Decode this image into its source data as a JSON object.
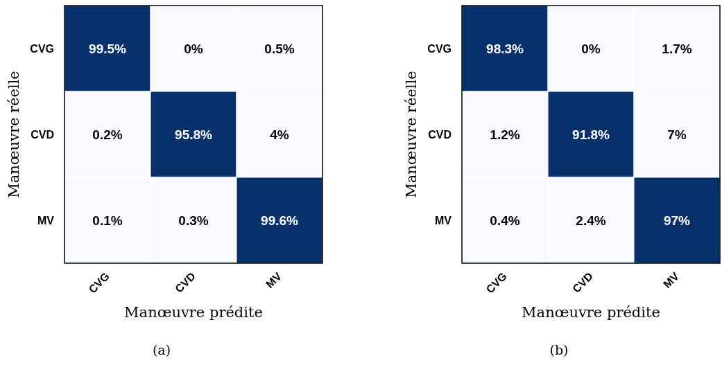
{
  "chart_data": [
    {
      "type": "heatmap",
      "xlabel": "Manœuvre prédite",
      "ylabel": "Manœuvre réelle",
      "categories": [
        "CVG",
        "CVD",
        "MV"
      ],
      "y_categories": [
        "CVG",
        "CVD",
        "MV"
      ],
      "cells": [
        [
          99.5,
          0,
          0.5
        ],
        [
          0.2,
          95.8,
          4
        ],
        [
          0.1,
          0.3,
          99.6
        ]
      ],
      "cell_labels": [
        [
          "99.5%",
          "0%",
          "0.5%"
        ],
        [
          "0.2%",
          "95.8%",
          "4%"
        ],
        [
          "0.1%",
          "0.3%",
          "99.6%"
        ]
      ],
      "annotations": [
        "(a)"
      ]
    },
    {
      "type": "heatmap",
      "xlabel": "Manœuvre prédite",
      "ylabel": "Manœuvre réelle",
      "categories": [
        "CVG",
        "CVD",
        "MV"
      ],
      "y_categories": [
        "CVG",
        "CVD",
        "MV"
      ],
      "cells": [
        [
          98.3,
          0,
          1.7
        ],
        [
          1.2,
          91.8,
          7
        ],
        [
          0.4,
          2.4,
          97
        ]
      ],
      "cell_labels": [
        [
          "98.3%",
          "0%",
          "1.7%"
        ],
        [
          "1.2%",
          "91.8%",
          "7%"
        ],
        [
          "0.4%",
          "2.4%",
          "97%"
        ]
      ],
      "annotations": [
        "(b)"
      ]
    }
  ]
}
